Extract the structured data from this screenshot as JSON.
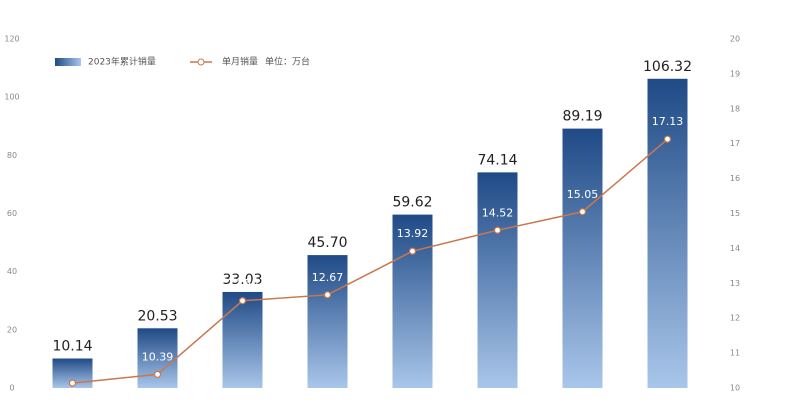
{
  "chart_data": {
    "type": "bar-line",
    "legend_note": "单位：万台",
    "categories": [
      null,
      null,
      null,
      null,
      null,
      null,
      null,
      null
    ],
    "series": [
      {
        "name": "2023年累计销量",
        "type": "bar",
        "color": "#2a5590",
        "values": [
          10.14,
          20.53,
          33.03,
          45.7,
          59.62,
          74.14,
          89.19,
          106.32
        ],
        "value_labels": [
          "10.14",
          "20.53",
          "33.03",
          "45.70",
          "59.62",
          "74.14",
          "89.19",
          "106.32"
        ]
      },
      {
        "name": "单月销量",
        "type": "line",
        "axis": "y2",
        "color": "#c8784e",
        "values": [
          10.14,
          10.39,
          12.5,
          12.67,
          13.92,
          14.52,
          15.05,
          17.13
        ],
        "value_labels": [
          null,
          "10.39",
          "12.50",
          "12.67",
          "13.92",
          "14.52",
          "15.05",
          "17.13"
        ]
      }
    ],
    "ylim": [
      0,
      120
    ],
    "yticks": [
      0,
      20,
      40,
      60,
      80,
      100,
      120
    ],
    "y2lim": [
      10,
      20
    ],
    "y2ticks": [
      10,
      11,
      12,
      13,
      14,
      15,
      16,
      17,
      18,
      19,
      20
    ]
  }
}
